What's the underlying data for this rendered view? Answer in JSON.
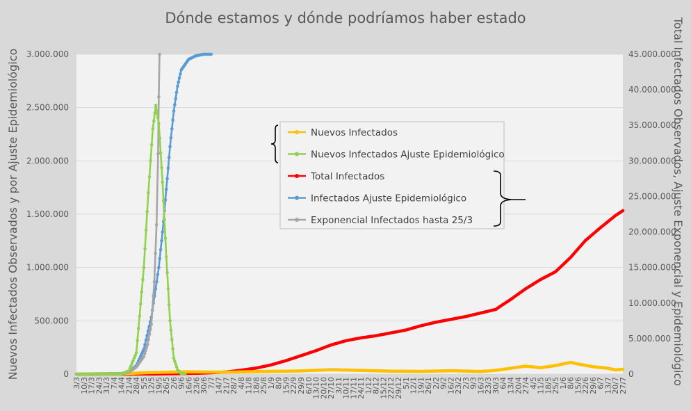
{
  "chart_data": {
    "type": "line",
    "title": "Dónde estamos y dónde podríamos haber estado",
    "ylabel": "Nuevos Infectados Observados y por Ajuste Epidemiológico",
    "y2label": "Total Infectados Observados, Ajuste Exponencial y Epidemiológico",
    "ylim": [
      0,
      3000000
    ],
    "y2lim": [
      0,
      45000000
    ],
    "y_ticks": [
      "0",
      "500.000",
      "1.000.000",
      "1.500.000",
      "2.000.000",
      "2.500.000",
      "3.000.000"
    ],
    "y2_ticks": [
      "0",
      "5.000.000",
      "10.000.000",
      "15.000.000",
      "20.000.000",
      "25.000.000",
      "30.000.000",
      "35.000.000",
      "40.000.000",
      "45.000.000"
    ],
    "x_ticks": [
      "3/3",
      "10/3",
      "17/3",
      "24/3",
      "31/3",
      "7/4",
      "14/4",
      "21/4",
      "28/4",
      "5/5",
      "12/5",
      "19/5",
      "26/5",
      "2/6",
      "9/6",
      "16/6",
      "23/6",
      "30/6",
      "7/7",
      "14/7",
      "21/7",
      "28/7",
      "4/8",
      "11/8",
      "18/8",
      "25/8",
      "1/9",
      "8/9",
      "15/9",
      "22/9",
      "29/9",
      "6/10",
      "13/10",
      "20/10",
      "27/10",
      "3/11",
      "10/11",
      "17/11",
      "24/11",
      "1/12",
      "8/12",
      "15/12",
      "22/12",
      "29/12",
      "5/1",
      "12/1",
      "19/1",
      "26/1",
      "2/2",
      "9/2",
      "16/2",
      "23/2",
      "2/3",
      "9/3",
      "16/3",
      "23/3",
      "30/3",
      "6/4",
      "13/4",
      "20/4",
      "27/4",
      "4/5",
      "11/5",
      "18/5",
      "25/5",
      "1/6",
      "8/6",
      "15/6",
      "22/6",
      "29/6",
      "6/7",
      "13/7",
      "20/7",
      "27/7"
    ],
    "grid": true,
    "legend_position": "center",
    "series": [
      {
        "name": "Nuevos Infectados",
        "axis": "left",
        "color": "#ffc000",
        "points": [
          [
            0,
            0
          ],
          [
            6,
            4000
          ],
          [
            10,
            15000
          ],
          [
            15,
            22000
          ],
          [
            20,
            18000
          ],
          [
            25,
            25000
          ],
          [
            30,
            30000
          ],
          [
            34,
            42000
          ],
          [
            38,
            35000
          ],
          [
            42,
            28000
          ],
          [
            46,
            26000
          ],
          [
            50,
            32000
          ],
          [
            54,
            25000
          ],
          [
            56,
            35000
          ],
          [
            58,
            55000
          ],
          [
            60,
            75000
          ],
          [
            62,
            60000
          ],
          [
            64,
            80000
          ],
          [
            66,
            110000
          ],
          [
            67,
            95000
          ],
          [
            69,
            70000
          ],
          [
            71,
            55000
          ],
          [
            72,
            40000
          ],
          [
            73,
            45000
          ]
        ]
      },
      {
        "name": "Nuevos Infectados Ajuste Epidemiológico",
        "axis": "left",
        "color": "#92d050",
        "points": [
          [
            0,
            0
          ],
          [
            6,
            2000
          ],
          [
            7,
            30000
          ],
          [
            8,
            200000
          ],
          [
            9,
            1000000
          ],
          [
            9.6,
            1700000
          ],
          [
            10.2,
            2300000
          ],
          [
            10.6,
            2520000
          ],
          [
            11.0,
            2350000
          ],
          [
            11.5,
            1800000
          ],
          [
            12.0,
            1100000
          ],
          [
            12.5,
            500000
          ],
          [
            13.0,
            150000
          ],
          [
            13.5,
            40000
          ],
          [
            14.0,
            5000
          ],
          [
            14.5,
            0
          ]
        ]
      },
      {
        "name": "Total Infectados",
        "axis": "right",
        "color": "#ff0000",
        "points": [
          [
            0,
            0
          ],
          [
            10,
            20000
          ],
          [
            14,
            80000
          ],
          [
            17,
            150000
          ],
          [
            20,
            300000
          ],
          [
            22,
            550000
          ],
          [
            24,
            850000
          ],
          [
            26,
            1300000
          ],
          [
            28,
            1900000
          ],
          [
            30,
            2600000
          ],
          [
            32,
            3300000
          ],
          [
            34,
            4100000
          ],
          [
            36,
            4700000
          ],
          [
            38,
            5100000
          ],
          [
            40,
            5400000
          ],
          [
            42,
            5800000
          ],
          [
            44,
            6200000
          ],
          [
            46,
            6800000
          ],
          [
            48,
            7300000
          ],
          [
            50,
            7700000
          ],
          [
            52,
            8100000
          ],
          [
            54,
            8600000
          ],
          [
            56,
            9100000
          ],
          [
            58,
            10500000
          ],
          [
            60,
            12000000
          ],
          [
            62,
            13300000
          ],
          [
            64,
            14400000
          ],
          [
            66,
            16400000
          ],
          [
            68,
            18800000
          ],
          [
            70,
            20600000
          ],
          [
            72,
            22300000
          ],
          [
            73,
            23000000
          ]
        ]
      },
      {
        "name": "Infectados Ajuste Epidemiológico",
        "axis": "right",
        "color": "#5b9bd5",
        "points": [
          [
            0,
            0
          ],
          [
            6,
            50000
          ],
          [
            7,
            300000
          ],
          [
            8,
            1200000
          ],
          [
            9,
            3500000
          ],
          [
            10,
            8000000
          ],
          [
            11,
            15000000
          ],
          [
            11.5,
            20000000
          ],
          [
            12,
            26000000
          ],
          [
            12.5,
            32000000
          ],
          [
            13,
            37000000
          ],
          [
            13.5,
            40500000
          ],
          [
            14,
            42800000
          ],
          [
            15,
            44300000
          ],
          [
            16,
            44800000
          ],
          [
            17,
            45000000
          ],
          [
            18,
            45000000
          ]
        ]
      },
      {
        "name": "Exponencial Infectados hasta 25/3",
        "axis": "right",
        "color": "#a5a5a5",
        "points": [
          [
            0,
            0
          ],
          [
            6,
            80000
          ],
          [
            7,
            300000
          ],
          [
            8,
            1000000
          ],
          [
            9,
            2500000
          ],
          [
            9.5,
            4200000
          ],
          [
            10,
            7000000
          ],
          [
            10.4,
            13000000
          ],
          [
            10.7,
            21000000
          ],
          [
            10.9,
            31000000
          ],
          [
            11.0,
            39000000
          ],
          [
            11.1,
            45000000
          ]
        ]
      }
    ]
  }
}
